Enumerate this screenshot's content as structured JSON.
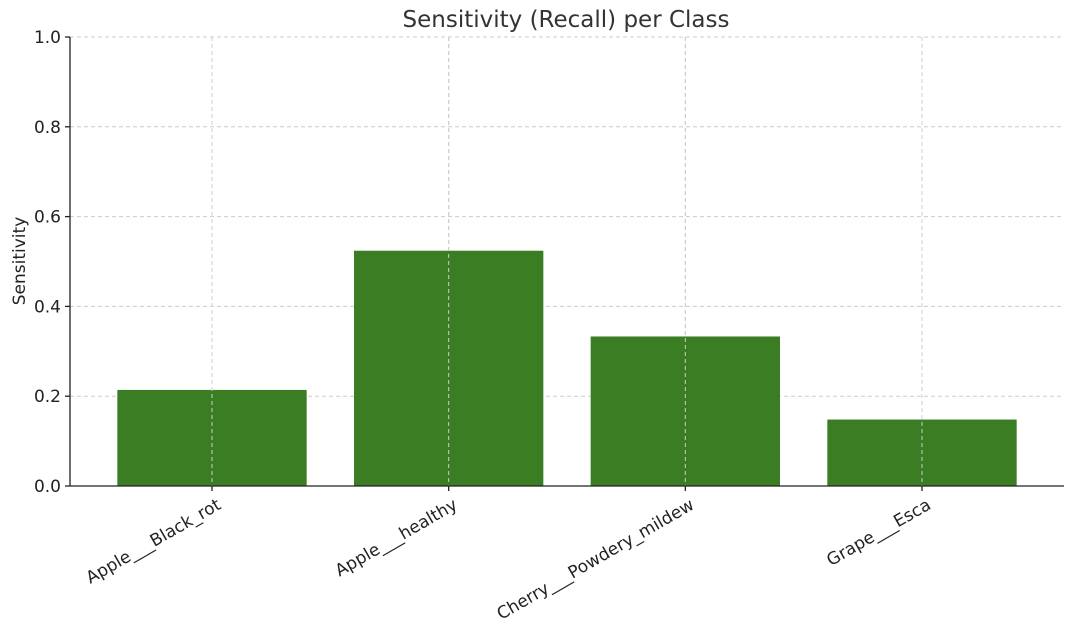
{
  "chart_data": {
    "type": "bar",
    "title": "Sensitivity (Recall) per Class",
    "xlabel": "",
    "ylabel": "Sensitivity",
    "categories": [
      "Apple___Black_rot",
      "Apple___healthy",
      "Cherry___Powdery_mildew",
      "Grape___Esca"
    ],
    "values": [
      0.214,
      0.524,
      0.333,
      0.148
    ],
    "ylim": [
      0,
      1.0
    ],
    "yticks": [
      "0.0",
      "0.2",
      "0.4",
      "0.6",
      "0.8",
      "1.0"
    ],
    "grid": true,
    "bar_color": "#3a7d23"
  }
}
